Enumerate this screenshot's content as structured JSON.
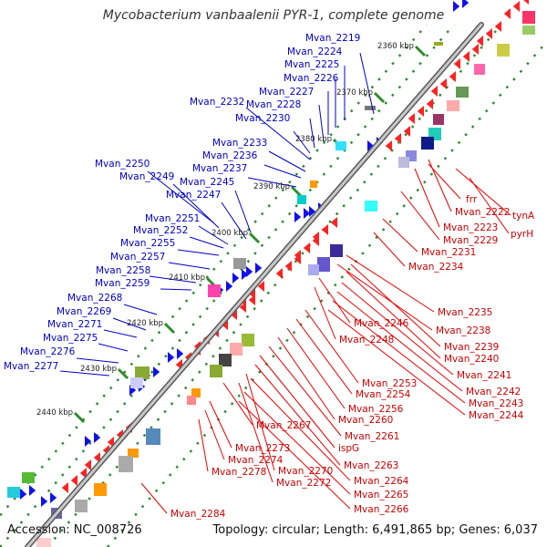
{
  "title": "Mycobacterium vanbaalenii PYR-1, complete genome",
  "accession": {
    "label": "Accession:",
    "value": "NC_008726"
  },
  "topology": {
    "label": "Topology:",
    "value": "circular;"
  },
  "length": {
    "label": "Length:",
    "value": "6,491,865 bp;"
  },
  "genes": {
    "label": "Genes:",
    "value": "6,037"
  },
  "colors": {
    "forward_strand_label": "#0000cc",
    "reverse_strand_label": "#cc0000",
    "backbone": "#8a8a8a",
    "tick": "#2e8b2e"
  },
  "kbp_markers": [
    "2360 kbp",
    "2370 kbp",
    "2380 kbp",
    "2390 kbp",
    "2400 kbp",
    "2410 kbp",
    "2420 kbp",
    "2430 kbp",
    "2440 kbp"
  ],
  "forward_genes": [
    "Mvan_2219",
    "Mvan_2224",
    "Mvan_2225",
    "Mvan_2226",
    "Mvan_2227",
    "Mvan_2228",
    "Mvan_2230",
    "Mvan_2232",
    "Mvan_2233",
    "Mvan_2236",
    "Mvan_2237",
    "Mvan_2250",
    "Mvan_2249",
    "Mvan_2245",
    "Mvan_2247",
    "Mvan_2251",
    "Mvan_2252",
    "Mvan_2255",
    "Mvan_2257",
    "Mvan_2258",
    "Mvan_2259",
    "Mvan_2268",
    "Mvan_2269",
    "Mvan_2271",
    "Mvan_2275",
    "Mvan_2276",
    "Mvan_2277"
  ],
  "reverse_genes": [
    "frr",
    "Mvan_2222",
    "tynA",
    "Mvan_2223",
    "pyrH",
    "Mvan_2229",
    "Mvan_2231",
    "Mvan_2234",
    "Mvan_2235",
    "Mvan_2238",
    "Mvan_2246",
    "Mvan_2248",
    "Mvan_2239",
    "Mvan_2240",
    "Mvan_2241",
    "Mvan_2242",
    "Mvan_2243",
    "Mvan_2244",
    "Mvan_2253",
    "Mvan_2254",
    "Mvan_2256",
    "Mvan_2260",
    "Mvan_2267",
    "Mvan_2261",
    "ispG",
    "Mvan_2273",
    "Mvan_2274",
    "Mvan_2263",
    "Mvan_2278",
    "Mvan_2270",
    "Mvan_2264",
    "Mvan_2272",
    "Mvan_2265",
    "Mvan_2266",
    "Mvan_2284"
  ]
}
